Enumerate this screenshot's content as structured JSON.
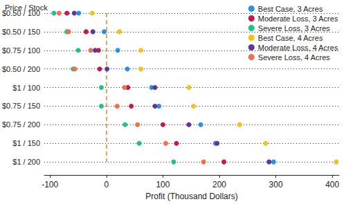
{
  "chart_data": {
    "type": "scatter",
    "y_label": "Price / Stock",
    "x_label": "Profit (Thousand Dollars)",
    "categories": [
      "$0.50 / 100",
      "$0.50 / 150",
      "$0.75 / 100",
      "$0.50 / 200",
      "$1 / 100",
      "$0.75 / 150",
      "$0.75 / 200",
      "$1 / 150",
      "$1 / 200"
    ],
    "series": [
      {
        "name": "Best Case, 3 Acres",
        "color": "#2c8fe0",
        "values": [
          -49,
          -4,
          20,
          37,
          80,
          93,
          167,
          193,
          296
        ]
      },
      {
        "name": "Moderate Loss, 3 Acres",
        "color": "#c8174b",
        "values": [
          -70,
          -36,
          -14,
          -12,
          38,
          44,
          100,
          124,
          208
        ]
      },
      {
        "name": "Severe Loss, 3 Acres",
        "color": "#20c08a",
        "values": [
          -93,
          -70,
          -50,
          -59,
          -9,
          -9,
          33,
          58,
          119
        ]
      },
      {
        "name": "Best Case, 4 Acres",
        "color": "#f2c21a",
        "values": [
          -25,
          23,
          61,
          61,
          146,
          154,
          236,
          282,
          407
        ]
      },
      {
        "name": "Moderate Loss, 4 Acres",
        "color": "#5a37a0",
        "values": [
          -57,
          -24,
          -20,
          1,
          86,
          86,
          146,
          196,
          288
        ]
      },
      {
        "name": "Severe Loss, 4 Acres",
        "color": "#f0704e",
        "values": [
          -84,
          -67,
          -28,
          -56,
          32,
          19,
          55,
          105,
          172
        ]
      }
    ],
    "xlim": [
      -110,
      412
    ],
    "xticks": [
      -100,
      0,
      100,
      200,
      300,
      400
    ],
    "reference_line": 0,
    "grid": true,
    "legend": "top-right",
    "marker": "circle"
  }
}
